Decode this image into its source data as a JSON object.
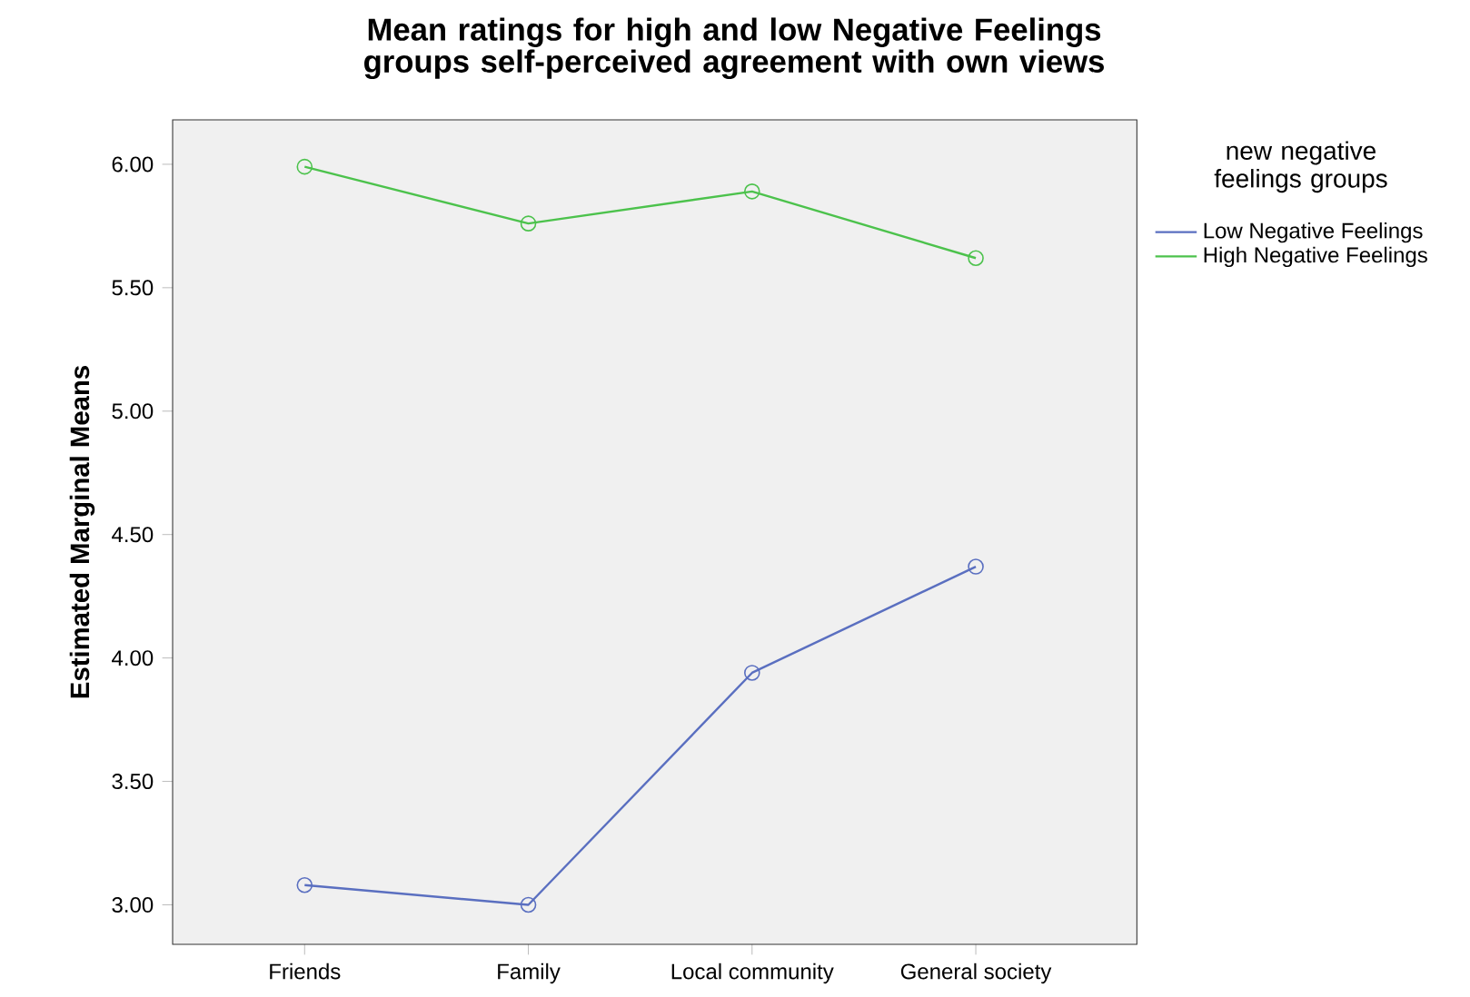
{
  "chart_data": {
    "type": "line",
    "title": "Mean ratings for high and low Negative Feelings groups self-perceived agreement with own views",
    "ylabel": "Estimated Marginal Means",
    "legend_title": "new negative feelings groups",
    "categories": [
      "Friends",
      "Family",
      "Local community",
      "General society"
    ],
    "series": [
      {
        "name": "Low Negative Feelings",
        "color": "#5a6fc0",
        "values": [
          3.08,
          3.0,
          3.94,
          4.37
        ]
      },
      {
        "name": "High Negative Feelings",
        "color": "#4cc24c",
        "values": [
          5.99,
          5.76,
          5.89,
          5.62
        ]
      }
    ],
    "ylim": [
      2.84,
      6.18
    ],
    "yticks": [
      {
        "value": 3,
        "label": "3.00"
      },
      {
        "value": 3.5,
        "label": "3.50"
      },
      {
        "value": 4,
        "label": "4.00"
      },
      {
        "value": 4.5,
        "label": "4.50"
      },
      {
        "value": 5,
        "label": "5.00"
      },
      {
        "value": 5.5,
        "label": "5.50"
      },
      {
        "value": 6,
        "label": "6.00"
      }
    ],
    "legend": "right",
    "marker": "circle",
    "line_style": "solid"
  }
}
